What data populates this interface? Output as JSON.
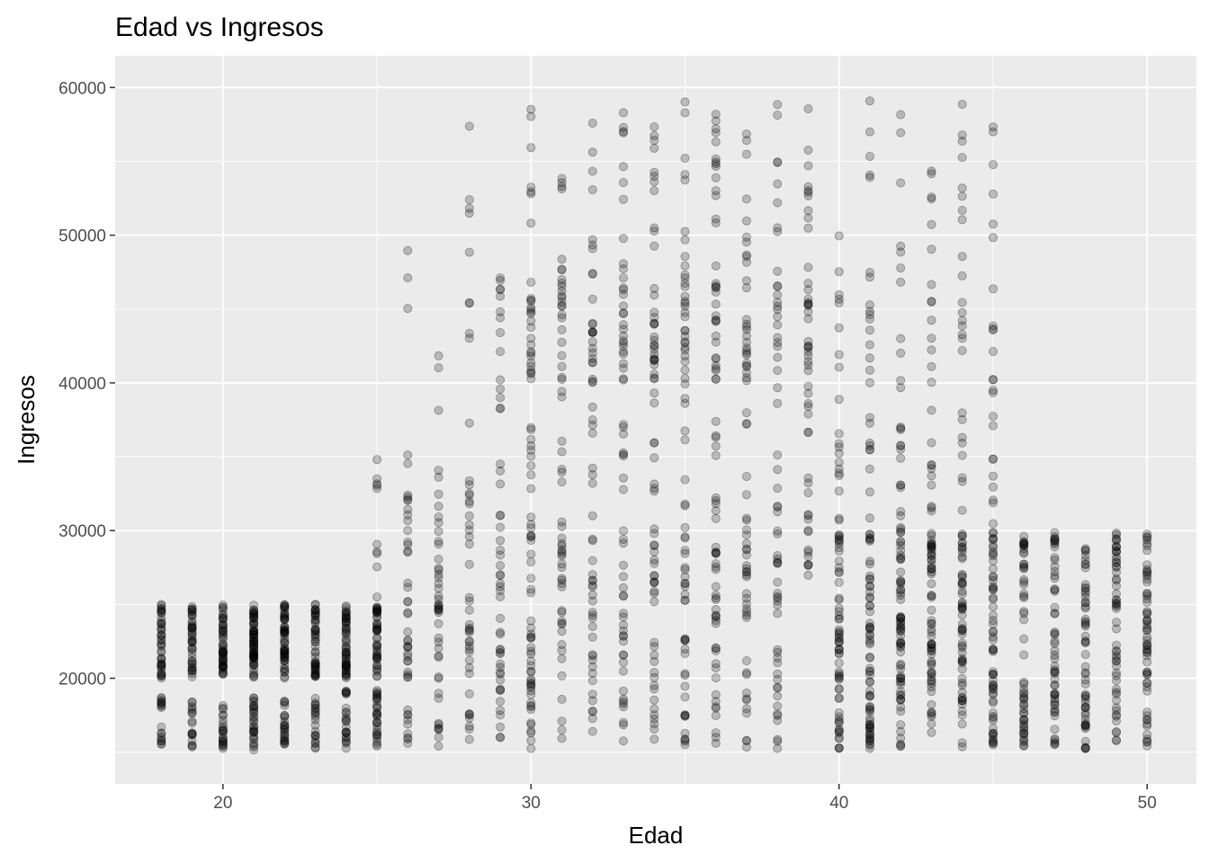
{
  "chart_data": {
    "type": "scatter",
    "title": "Edad vs Ingresos",
    "xlabel": "Edad",
    "ylabel": "Ingresos",
    "xlim": [
      16.5,
      51.6
    ],
    "ylim": [
      12850,
      62150
    ],
    "x_ticks": [
      20,
      30,
      40,
      50
    ],
    "x_tick_labels": [
      "20",
      "30",
      "40",
      "50"
    ],
    "y_ticks": [
      20000,
      30000,
      40000,
      50000,
      60000
    ],
    "y_tick_labels": [
      "20000",
      "30000",
      "40000",
      "50000",
      "60000"
    ],
    "grid": true,
    "legend": "none",
    "point_color": "#000000",
    "point_alpha": 0.22,
    "panel_background": "#ebebeb",
    "grid_color": "#ffffff",
    "age_groups": [
      {
        "x": 18,
        "n": 60,
        "bands": [
          [
            15400,
            18700,
            0.3
          ],
          [
            20000,
            25000,
            0.7
          ]
        ]
      },
      {
        "x": 19,
        "n": 60,
        "bands": [
          [
            15200,
            18700,
            0.3
          ],
          [
            20000,
            25000,
            0.7
          ]
        ]
      },
      {
        "x": 20,
        "n": 75,
        "bands": [
          [
            15200,
            18700,
            0.3
          ],
          [
            20000,
            25000,
            0.7
          ]
        ]
      },
      {
        "x": 21,
        "n": 95,
        "bands": [
          [
            15100,
            18700,
            0.3
          ],
          [
            20000,
            25000,
            0.7
          ]
        ]
      },
      {
        "x": 22,
        "n": 80,
        "bands": [
          [
            15200,
            18700,
            0.3
          ],
          [
            20000,
            25000,
            0.7
          ]
        ]
      },
      {
        "x": 23,
        "n": 70,
        "bands": [
          [
            15200,
            18700,
            0.3
          ],
          [
            20000,
            25000,
            0.7
          ]
        ]
      },
      {
        "x": 24,
        "n": 80,
        "bands": [
          [
            15200,
            19200,
            0.3
          ],
          [
            20000,
            25000,
            0.7
          ]
        ]
      },
      {
        "x": 25,
        "n": 85,
        "bands": [
          [
            15200,
            19200,
            0.35
          ],
          [
            20000,
            25000,
            0.53
          ],
          [
            25000,
            37600,
            0.12
          ]
        ]
      },
      {
        "x": 26,
        "n": 45,
        "bands": [
          [
            15500,
            19200,
            0.2
          ],
          [
            20000,
            25000,
            0.35
          ],
          [
            25000,
            33000,
            0.35
          ],
          [
            33000,
            51700,
            0.1
          ]
        ]
      },
      {
        "x": 27,
        "n": 45,
        "bands": [
          [
            15200,
            19200,
            0.2
          ],
          [
            20000,
            25000,
            0.35
          ],
          [
            25000,
            31000,
            0.3
          ],
          [
            31000,
            44500,
            0.15
          ]
        ]
      },
      {
        "x": 28,
        "n": 45,
        "bands": [
          [
            15400,
            19200,
            0.18
          ],
          [
            20000,
            25000,
            0.3
          ],
          [
            25000,
            34000,
            0.3
          ],
          [
            34000,
            59200,
            0.22
          ]
        ]
      },
      {
        "x": 29,
        "n": 50,
        "bands": [
          [
            15500,
            19200,
            0.15
          ],
          [
            19200,
            30000,
            0.45
          ],
          [
            30000,
            40000,
            0.2
          ],
          [
            40000,
            47200,
            0.2
          ]
        ]
      },
      {
        "x": 30,
        "n": 80,
        "bands": [
          [
            15200,
            30000,
            0.5
          ],
          [
            30000,
            39500,
            0.15
          ],
          [
            39500,
            46000,
            0.25
          ],
          [
            46000,
            59000,
            0.1
          ]
        ]
      },
      {
        "x": 31,
        "n": 60,
        "bands": [
          [
            15800,
            30000,
            0.45
          ],
          [
            30000,
            40000,
            0.15
          ],
          [
            40000,
            47000,
            0.28
          ],
          [
            47000,
            59200,
            0.12
          ]
        ]
      },
      {
        "x": 32,
        "n": 60,
        "bands": [
          [
            16000,
            30000,
            0.45
          ],
          [
            30000,
            40000,
            0.13
          ],
          [
            40000,
            46000,
            0.27
          ],
          [
            46000,
            57800,
            0.15
          ]
        ]
      },
      {
        "x": 33,
        "n": 65,
        "bands": [
          [
            15200,
            30000,
            0.42
          ],
          [
            30000,
            40000,
            0.13
          ],
          [
            40000,
            46000,
            0.25
          ],
          [
            46000,
            58500,
            0.2
          ]
        ]
      },
      {
        "x": 34,
        "n": 70,
        "bands": [
          [
            15800,
            30000,
            0.42
          ],
          [
            30000,
            40000,
            0.13
          ],
          [
            40000,
            46000,
            0.28
          ],
          [
            46000,
            59500,
            0.17
          ]
        ]
      },
      {
        "x": 35,
        "n": 70,
        "bands": [
          [
            15300,
            30000,
            0.45
          ],
          [
            30000,
            40000,
            0.13
          ],
          [
            40000,
            47000,
            0.27
          ],
          [
            47000,
            59700,
            0.15
          ]
        ]
      },
      {
        "x": 36,
        "n": 75,
        "bands": [
          [
            15200,
            30000,
            0.42
          ],
          [
            30000,
            40000,
            0.13
          ],
          [
            40000,
            47000,
            0.25
          ],
          [
            47000,
            58900,
            0.2
          ]
        ]
      },
      {
        "x": 37,
        "n": 65,
        "bands": [
          [
            15200,
            30000,
            0.45
          ],
          [
            30000,
            40000,
            0.13
          ],
          [
            40000,
            47000,
            0.27
          ],
          [
            47000,
            57000,
            0.15
          ]
        ]
      },
      {
        "x": 38,
        "n": 60,
        "bands": [
          [
            15200,
            30000,
            0.5
          ],
          [
            30000,
            40000,
            0.13
          ],
          [
            40000,
            47000,
            0.22
          ],
          [
            47000,
            58900,
            0.15
          ]
        ]
      },
      {
        "x": 39,
        "n": 50,
        "bands": [
          [
            26800,
            30000,
            0.15
          ],
          [
            30000,
            40000,
            0.28
          ],
          [
            40000,
            47000,
            0.35
          ],
          [
            47000,
            59400,
            0.22
          ]
        ]
      },
      {
        "x": 40,
        "n": 80,
        "bands": [
          [
            15200,
            30000,
            0.75
          ],
          [
            30000,
            46000,
            0.22
          ],
          [
            46000,
            53200,
            0.03
          ]
        ]
      },
      {
        "x": 41,
        "n": 90,
        "bands": [
          [
            15200,
            30000,
            0.72
          ],
          [
            30000,
            46000,
            0.2
          ],
          [
            46000,
            59300,
            0.08
          ]
        ]
      },
      {
        "x": 42,
        "n": 90,
        "bands": [
          [
            15300,
            30000,
            0.72
          ],
          [
            30000,
            46000,
            0.2
          ],
          [
            46000,
            59200,
            0.08
          ]
        ]
      },
      {
        "x": 43,
        "n": 85,
        "bands": [
          [
            15300,
            30000,
            0.72
          ],
          [
            30000,
            46000,
            0.2
          ],
          [
            46000,
            57700,
            0.08
          ]
        ]
      },
      {
        "x": 44,
        "n": 85,
        "bands": [
          [
            15300,
            30000,
            0.7
          ],
          [
            30000,
            46000,
            0.18
          ],
          [
            46000,
            60000,
            0.12
          ]
        ]
      },
      {
        "x": 45,
        "n": 85,
        "bands": [
          [
            15300,
            30000,
            0.72
          ],
          [
            30000,
            46000,
            0.2
          ],
          [
            46000,
            58500,
            0.08
          ]
        ]
      },
      {
        "x": 46,
        "n": 55,
        "bands": [
          [
            15300,
            30000,
            1.0
          ]
        ]
      },
      {
        "x": 47,
        "n": 55,
        "bands": [
          [
            15400,
            30000,
            1.0
          ]
        ]
      },
      {
        "x": 48,
        "n": 55,
        "bands": [
          [
            15100,
            29600,
            1.0
          ]
        ]
      },
      {
        "x": 49,
        "n": 55,
        "bands": [
          [
            15400,
            29900,
            1.0
          ]
        ]
      },
      {
        "x": 50,
        "n": 60,
        "bands": [
          [
            15000,
            30000,
            1.0
          ]
        ]
      }
    ]
  }
}
